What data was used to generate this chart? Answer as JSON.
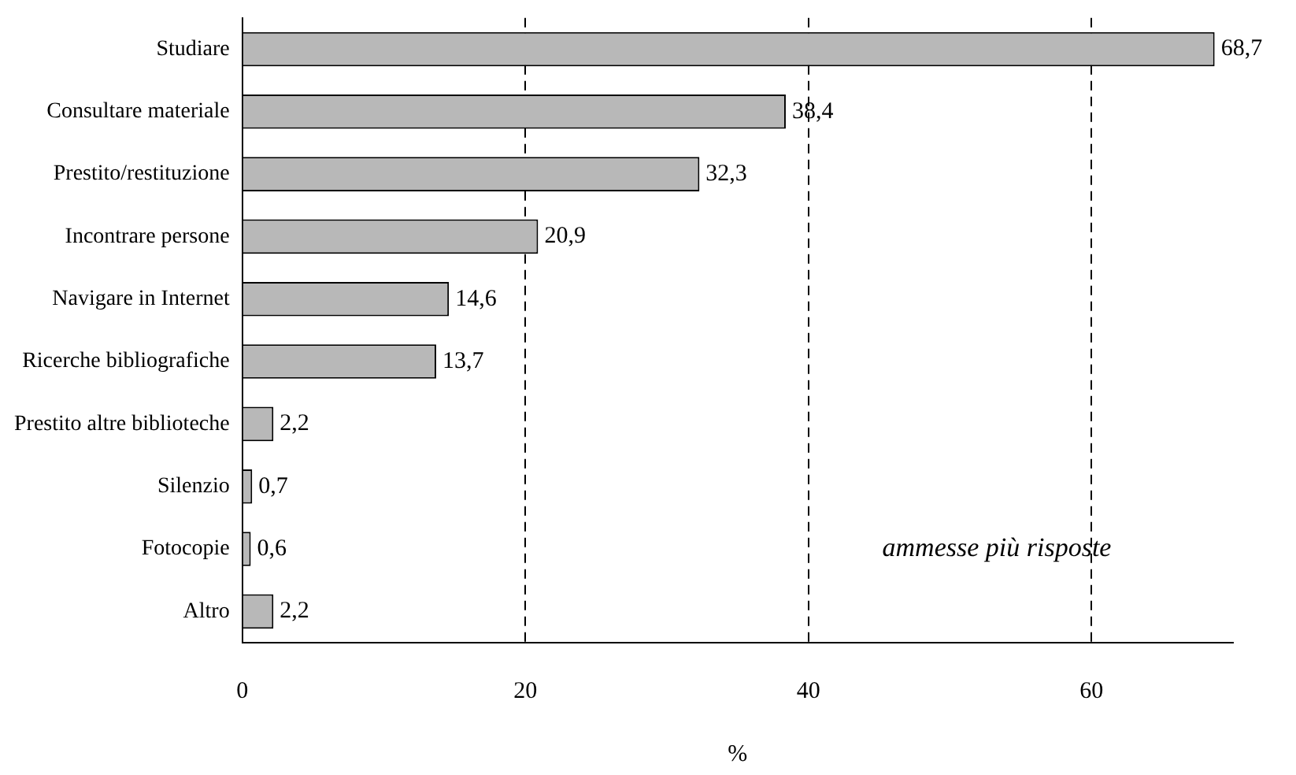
{
  "chart_data": {
    "type": "bar",
    "orientation": "horizontal",
    "xlabel": "%",
    "categories": [
      "Studiare",
      "Consultare materiale",
      "Prestito/restituzione",
      "Incontrare persone",
      "Navigare in Internet",
      "Ricerche bibliografiche",
      "Prestito altre biblioteche",
      "Silenzio",
      "Fotocopie",
      "Altro"
    ],
    "values": [
      68.7,
      38.4,
      32.3,
      20.9,
      14.6,
      13.7,
      2.2,
      0.7,
      0.6,
      2.2
    ],
    "value_labels": [
      "68,7",
      "38,4",
      "32,3",
      "20,9",
      "14,6",
      "13,7",
      "2,2",
      "0,7",
      "0,6",
      "2,2"
    ],
    "color": "#b8b8b8",
    "xlim": [
      0,
      70
    ],
    "xticks": [
      0,
      20,
      40,
      60
    ],
    "grid": "x",
    "legend": false,
    "annotations": [
      "ammesse più risposte"
    ]
  }
}
